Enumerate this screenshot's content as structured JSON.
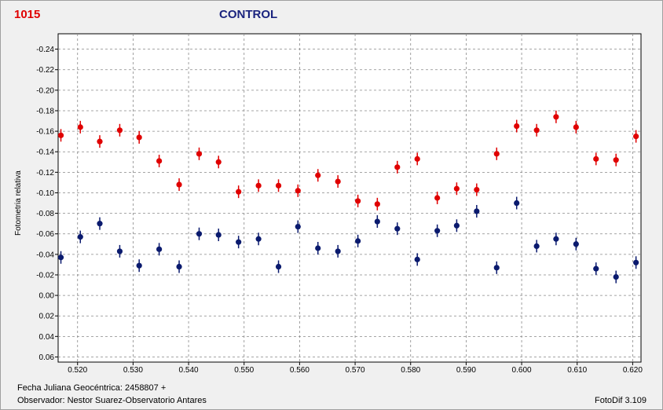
{
  "header": {
    "star_id": "1015",
    "title": "CONTROL"
  },
  "footer": {
    "x_axis_label": "Fecha Juliana Geocéntrica:  2458807 +",
    "observer": "Observador: Nestor Suarez-Observatorio Antares",
    "software": "FotoDif 3.109"
  },
  "chart_data": {
    "type": "scatter",
    "title": "CONTROL",
    "ylabel": "Fotometria relativa",
    "xlabel": "Fecha Juliana Geocéntrica:  2458807 +",
    "x_ticks": [
      "0.520",
      "0.530",
      "0.540",
      "0.550",
      "0.560",
      "0.570",
      "0.580",
      "0.590",
      "0.600",
      "0.610",
      "0.620"
    ],
    "y_ticks": [
      "-0.24",
      "-0.22",
      "-0.20",
      "-0.18",
      "-0.16",
      "-0.14",
      "-0.12",
      "-0.10",
      "-0.08",
      "-0.06",
      "-0.04",
      "-0.02",
      "0.00",
      "0.02",
      "0.04",
      "0.06"
    ],
    "xlim": [
      0.5165,
      0.6215
    ],
    "ylim": [
      -0.255,
      0.065
    ],
    "y_inverted": true,
    "grid": true,
    "error_bars": true,
    "series": [
      {
        "color": "#e00000",
        "x": [
          0.517,
          0.5205,
          0.524,
          0.5276,
          0.5311,
          0.5347,
          0.5383,
          0.5419,
          0.5454,
          0.549,
          0.5526,
          0.5562,
          0.5597,
          0.5633,
          0.5669,
          0.5705,
          0.574,
          0.5776,
          0.5812,
          0.5848,
          0.5883,
          0.5919,
          0.5955,
          0.5991,
          0.6027,
          0.6062,
          0.6098,
          0.6134,
          0.617,
          0.6206
        ],
        "y": [
          -0.156,
          -0.164,
          -0.15,
          -0.161,
          -0.154,
          -0.131,
          -0.108,
          -0.138,
          -0.13,
          -0.101,
          -0.107,
          -0.107,
          -0.102,
          -0.117,
          -0.111,
          -0.092,
          -0.089,
          -0.125,
          -0.133,
          -0.095,
          -0.104,
          -0.103,
          -0.138,
          -0.165,
          -0.161,
          -0.174,
          -0.164,
          -0.133,
          -0.132,
          -0.155
        ]
      },
      {
        "color": "#0a1a6e",
        "x": [
          0.517,
          0.5205,
          0.524,
          0.5276,
          0.5311,
          0.5347,
          0.5383,
          0.5419,
          0.5454,
          0.549,
          0.5526,
          0.5562,
          0.5597,
          0.5633,
          0.5669,
          0.5705,
          0.574,
          0.5776,
          0.5812,
          0.5848,
          0.5883,
          0.5919,
          0.5955,
          0.5991,
          0.6027,
          0.6062,
          0.6098,
          0.6134,
          0.617,
          0.6206
        ],
        "y": [
          -0.037,
          -0.057,
          -0.07,
          -0.043,
          -0.029,
          -0.045,
          -0.028,
          -0.06,
          -0.059,
          -0.052,
          -0.055,
          -0.028,
          -0.067,
          -0.046,
          -0.043,
          -0.053,
          -0.072,
          -0.065,
          -0.035,
          -0.063,
          -0.068,
          -0.082,
          -0.027,
          -0.09,
          -0.048,
          -0.055,
          -0.05,
          -0.026,
          -0.018,
          -0.032
        ]
      }
    ]
  }
}
